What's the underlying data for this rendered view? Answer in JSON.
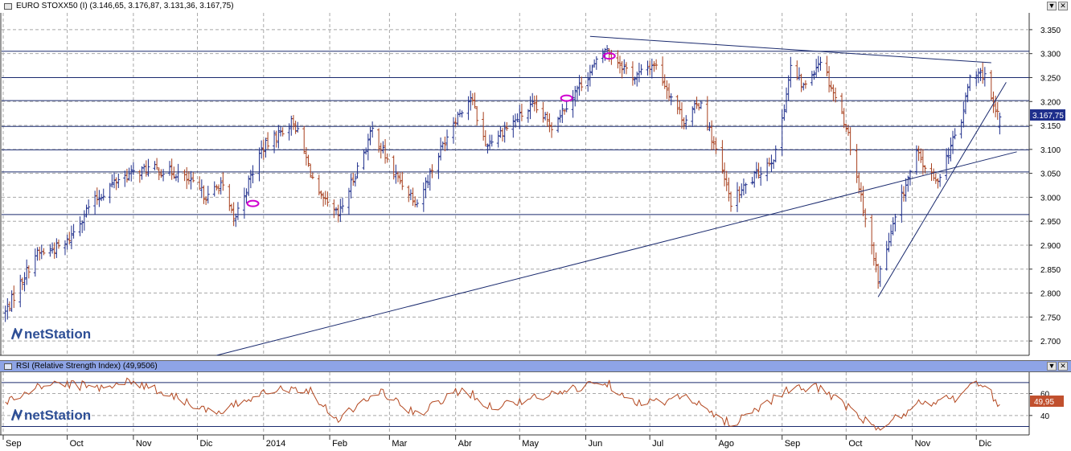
{
  "main_panel": {
    "title": "EURO STOXX50 (I) (3.146,65, 3.176,87, 3.131,36, 3.167,75)",
    "last_price_label": "3.167,75",
    "watermark": "netStation"
  },
  "rsi_panel": {
    "title": "RSI (Relative Strength Index) (49,9506)",
    "last_value_label": "49,95",
    "watermark": "netStation"
  },
  "window_buttons": {
    "scroll_down": "▼",
    "close": "✕"
  },
  "colors": {
    "up_bar": "#1f2f8c",
    "down_bar": "#a8401e",
    "rsi_line": "#b3471f",
    "trendline": "#1a2a6e",
    "h_line": "#1a2a6e",
    "grid": "#a8a8a8",
    "rsi_header": "#8ea4e6",
    "price_box": "#1f2f8c",
    "rsi_box": "#c1502e",
    "markers": "#d000d0"
  },
  "chart_data": [
    {
      "type": "ohlc",
      "title": "EURO STOXX50 (I)",
      "last": {
        "open": 3146.65,
        "high": 3176.87,
        "low": 3131.36,
        "close": 3167.75
      },
      "ylim": [
        2670,
        3375
      ],
      "y_ticks": [
        "3.350",
        "3.300",
        "3.250",
        "3.200",
        "3.150",
        "3.100",
        "3.050",
        "3.000",
        "2.950",
        "2.900",
        "2.850",
        "2.800",
        "2.750",
        "2.700"
      ],
      "x_ticks": [
        "Sep",
        "Oct",
        "Nov",
        "Dic",
        "2014",
        "Feb",
        "Mar",
        "Abr",
        "May",
        "Jun",
        "Jul",
        "Ago",
        "Sep",
        "Oct",
        "Nov",
        "Dic"
      ],
      "grid": true,
      "close_path": [
        {
          "d": "2013-09-02",
          "v": 2760
        },
        {
          "d": "2013-09-16",
          "v": 2880
        },
        {
          "d": "2013-09-30",
          "v": 2900
        },
        {
          "d": "2013-10-11",
          "v": 2980
        },
        {
          "d": "2013-10-25",
          "v": 3040
        },
        {
          "d": "2013-11-08",
          "v": 3060
        },
        {
          "d": "2013-11-22",
          "v": 3050
        },
        {
          "d": "2013-12-06",
          "v": 3000
        },
        {
          "d": "2013-12-12",
          "v": 3030
        },
        {
          "d": "2013-12-18",
          "v": 2950
        },
        {
          "d": "2013-12-31",
          "v": 3100
        },
        {
          "d": "2014-01-15",
          "v": 3160
        },
        {
          "d": "2014-01-27",
          "v": 3000
        },
        {
          "d": "2014-02-05",
          "v": 2960
        },
        {
          "d": "2014-02-21",
          "v": 3140
        },
        {
          "d": "2014-03-03",
          "v": 3050
        },
        {
          "d": "2014-03-14",
          "v": 2990
        },
        {
          "d": "2014-03-31",
          "v": 3160
        },
        {
          "d": "2014-04-08",
          "v": 3210
        },
        {
          "d": "2014-04-15",
          "v": 3110
        },
        {
          "d": "2014-05-07",
          "v": 3190
        },
        {
          "d": "2014-05-16",
          "v": 3150
        },
        {
          "d": "2014-05-27",
          "v": 3220
        },
        {
          "d": "2014-06-06",
          "v": 3280
        },
        {
          "d": "2014-06-10",
          "v": 3310
        },
        {
          "d": "2014-06-24",
          "v": 3250
        },
        {
          "d": "2014-07-03",
          "v": 3280
        },
        {
          "d": "2014-07-17",
          "v": 3160
        },
        {
          "d": "2014-07-25",
          "v": 3200
        },
        {
          "d": "2014-08-08",
          "v": 2990
        },
        {
          "d": "2014-08-29",
          "v": 3090
        },
        {
          "d": "2014-09-05",
          "v": 3270
        },
        {
          "d": "2014-09-11",
          "v": 3230
        },
        {
          "d": "2014-09-19",
          "v": 3290
        },
        {
          "d": "2014-10-01",
          "v": 3150
        },
        {
          "d": "2014-10-16",
          "v": 2830
        },
        {
          "d": "2014-10-27",
          "v": 3000
        },
        {
          "d": "2014-11-03",
          "v": 3090
        },
        {
          "d": "2014-11-12",
          "v": 3030
        },
        {
          "d": "2014-11-24",
          "v": 3160
        },
        {
          "d": "2014-11-28",
          "v": 3250
        },
        {
          "d": "2014-12-05",
          "v": 3260
        },
        {
          "d": "2014-12-09",
          "v": 3180
        },
        {
          "d": "2014-12-12",
          "v": 3167.75
        }
      ],
      "trendlines": [
        {
          "from": {
            "d": "2013-12-10",
            "v": 2670
          },
          "to": {
            "d": "2014-12-20",
            "v": 3095
          }
        },
        {
          "from": {
            "d": "2014-06-03",
            "v": 3336
          },
          "to": {
            "d": "2014-12-08",
            "v": 3281
          }
        },
        {
          "from": {
            "d": "2014-10-16",
            "v": 2792
          },
          "to": {
            "d": "2014-12-15",
            "v": 3240
          }
        }
      ],
      "horizontal_lines": [
        3305,
        3250,
        3202,
        3148,
        3099,
        3053,
        2964
      ],
      "markers": [
        {
          "d": "2013-12-27",
          "v": 2987
        },
        {
          "d": "2014-05-23",
          "v": 3207
        },
        {
          "d": "2014-06-12",
          "v": 3295
        }
      ]
    },
    {
      "type": "line",
      "title": "RSI (Relative Strength Index)",
      "last_value": 49.9506,
      "ylim": [
        23,
        78
      ],
      "y_ticks": [
        "60",
        "40"
      ],
      "reference_lines": [
        70,
        30
      ],
      "x_ticks": [
        "Sep",
        "Oct",
        "Nov",
        "Dic",
        "2014",
        "Feb",
        "Mar",
        "Abr",
        "May",
        "Jun",
        "Jul",
        "Ago",
        "Sep",
        "Oct",
        "Nov",
        "Dic"
      ],
      "grid": true,
      "anchors": [
        {
          "d": "2013-09-02",
          "v": 52
        },
        {
          "d": "2013-09-23",
          "v": 70
        },
        {
          "d": "2013-10-14",
          "v": 66
        },
        {
          "d": "2013-11-01",
          "v": 71
        },
        {
          "d": "2013-11-20",
          "v": 58
        },
        {
          "d": "2013-12-10",
          "v": 40
        },
        {
          "d": "2014-01-02",
          "v": 64
        },
        {
          "d": "2014-01-22",
          "v": 64
        },
        {
          "d": "2014-02-04",
          "v": 37
        },
        {
          "d": "2014-02-25",
          "v": 62
        },
        {
          "d": "2014-03-14",
          "v": 40
        },
        {
          "d": "2014-04-04",
          "v": 65
        },
        {
          "d": "2014-04-17",
          "v": 48
        },
        {
          "d": "2014-05-15",
          "v": 58
        },
        {
          "d": "2014-06-09",
          "v": 72
        },
        {
          "d": "2014-06-27",
          "v": 50
        },
        {
          "d": "2014-07-17",
          "v": 57
        },
        {
          "d": "2014-08-08",
          "v": 32
        },
        {
          "d": "2014-09-02",
          "v": 62
        },
        {
          "d": "2014-09-19",
          "v": 66
        },
        {
          "d": "2014-10-16",
          "v": 26
        },
        {
          "d": "2014-11-03",
          "v": 50
        },
        {
          "d": "2014-11-21",
          "v": 56
        },
        {
          "d": "2014-12-03",
          "v": 70
        },
        {
          "d": "2014-12-12",
          "v": 50
        }
      ]
    }
  ]
}
